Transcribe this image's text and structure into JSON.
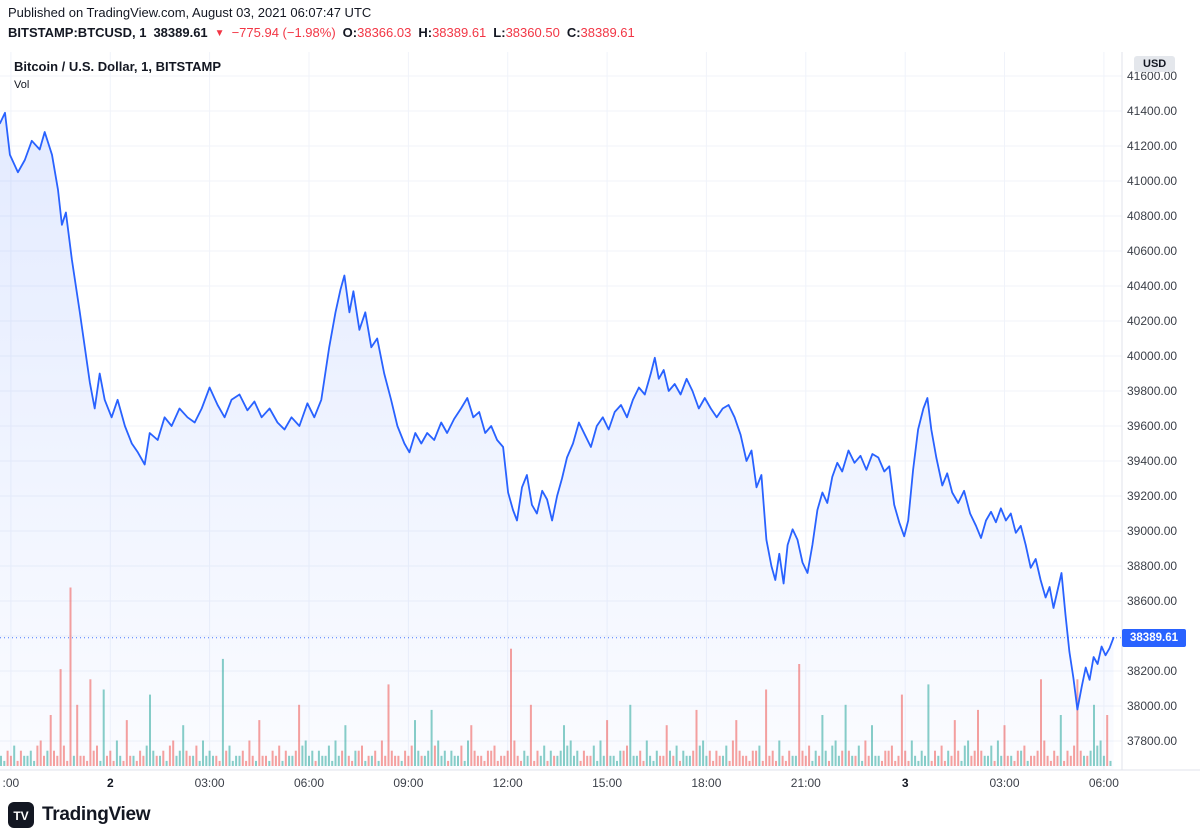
{
  "meta": {
    "published_line": "Published on TradingView.com, August 03, 2021 06:07:47 UTC"
  },
  "quote_bar": {
    "symbol": "BITSTAMP:BTCUSD, 1",
    "last": "38389.61",
    "direction_glyph": "▼",
    "change": "−775.94 (−1.98%)",
    "ohlc": [
      {
        "label": "O:",
        "value": "38366.03"
      },
      {
        "label": "H:",
        "value": "38389.61"
      },
      {
        "label": "L:",
        "value": "38360.50"
      },
      {
        "label": "C:",
        "value": "38389.61"
      }
    ]
  },
  "chart": {
    "title": "Bitcoin / U.S. Dollar, 1, BITSTAMP",
    "indicator_label": "Vol",
    "currency_badge": "USD",
    "price_badge": "38389.61",
    "colors": {
      "line": "#2962ff",
      "area_top": "rgba(41,98,255,0.13)",
      "area_bottom": "rgba(41,98,255,0.02)",
      "grid": "#f0f3fa",
      "axis_text": "#3c4049",
      "axis_text_major": "#131722",
      "negative": "#f23645",
      "volume_up": "rgba(38,166,154,0.55)",
      "volume_down": "rgba(239,83,80,0.55)",
      "badge_bg": "#2962ff",
      "separator": "#e0e3eb"
    }
  },
  "footer": {
    "brand": "TradingView"
  },
  "chart_data": {
    "type": "area",
    "title": "Bitcoin / U.S. Dollar, 1, BITSTAMP",
    "x_unit": "hours since 2021-08-01 21:00 UTC",
    "x_range": [
      -0.33,
      33.55
    ],
    "current_price": 38389.61,
    "y_axis": {
      "min": 37800,
      "max": 41600,
      "step": 200,
      "ticks": [
        41600,
        41400,
        41200,
        41000,
        40800,
        40600,
        40400,
        40200,
        40000,
        39800,
        39600,
        39400,
        39200,
        39000,
        38800,
        38600,
        38400,
        38200,
        38000,
        37800
      ]
    },
    "x_ticks": [
      {
        "t": 0,
        "label": ":00",
        "major": false
      },
      {
        "t": 3,
        "label": "2",
        "major": true
      },
      {
        "t": 6,
        "label": "03:00",
        "major": false
      },
      {
        "t": 9,
        "label": "06:00",
        "major": false
      },
      {
        "t": 12,
        "label": "09:00",
        "major": false
      },
      {
        "t": 15,
        "label": "12:00",
        "major": false
      },
      {
        "t": 18,
        "label": "15:00",
        "major": false
      },
      {
        "t": 21,
        "label": "18:00",
        "major": false
      },
      {
        "t": 24,
        "label": "21:00",
        "major": false
      },
      {
        "t": 27,
        "label": "3",
        "major": true
      },
      {
        "t": 30,
        "label": "03:00",
        "major": false
      },
      {
        "t": 33,
        "label": "06:00",
        "major": false
      }
    ],
    "price_points": [
      [
        -0.33,
        41330
      ],
      [
        -0.18,
        41390
      ],
      [
        -0.03,
        41150
      ],
      [
        0.21,
        41050
      ],
      [
        0.42,
        41120
      ],
      [
        0.63,
        41230
      ],
      [
        0.87,
        41180
      ],
      [
        1.02,
        41280
      ],
      [
        1.24,
        41150
      ],
      [
        1.42,
        40950
      ],
      [
        1.54,
        40750
      ],
      [
        1.66,
        40820
      ],
      [
        1.84,
        40550
      ],
      [
        2.08,
        40250
      ],
      [
        2.23,
        40050
      ],
      [
        2.38,
        39850
      ],
      [
        2.53,
        39700
      ],
      [
        2.68,
        39900
      ],
      [
        2.83,
        39750
      ],
      [
        3.04,
        39650
      ],
      [
        3.22,
        39750
      ],
      [
        3.44,
        39600
      ],
      [
        3.65,
        39500
      ],
      [
        3.83,
        39450
      ],
      [
        4.04,
        39380
      ],
      [
        4.19,
        39560
      ],
      [
        4.43,
        39520
      ],
      [
        4.64,
        39650
      ],
      [
        4.85,
        39600
      ],
      [
        5.09,
        39700
      ],
      [
        5.33,
        39650
      ],
      [
        5.55,
        39620
      ],
      [
        5.76,
        39700
      ],
      [
        6.0,
        39820
      ],
      [
        6.24,
        39720
      ],
      [
        6.45,
        39650
      ],
      [
        6.66,
        39750
      ],
      [
        6.9,
        39780
      ],
      [
        7.14,
        39690
      ],
      [
        7.35,
        39740
      ],
      [
        7.57,
        39650
      ],
      [
        7.81,
        39700
      ],
      [
        8.05,
        39620
      ],
      [
        8.26,
        39580
      ],
      [
        8.47,
        39650
      ],
      [
        8.71,
        39600
      ],
      [
        8.95,
        39730
      ],
      [
        9.16,
        39650
      ],
      [
        9.37,
        39750
      ],
      [
        9.61,
        40050
      ],
      [
        9.8,
        40250
      ],
      [
        9.95,
        40380
      ],
      [
        10.07,
        40460
      ],
      [
        10.22,
        40250
      ],
      [
        10.34,
        40370
      ],
      [
        10.52,
        40150
      ],
      [
        10.7,
        40250
      ],
      [
        10.88,
        40050
      ],
      [
        11.06,
        40100
      ],
      [
        11.27,
        39900
      ],
      [
        11.48,
        39750
      ],
      [
        11.67,
        39600
      ],
      [
        11.88,
        39500
      ],
      [
        12.03,
        39450
      ],
      [
        12.21,
        39560
      ],
      [
        12.39,
        39500
      ],
      [
        12.57,
        39560
      ],
      [
        12.78,
        39520
      ],
      [
        12.99,
        39620
      ],
      [
        13.17,
        39560
      ],
      [
        13.38,
        39640
      ],
      [
        13.59,
        39700
      ],
      [
        13.78,
        39760
      ],
      [
        13.96,
        39650
      ],
      [
        14.14,
        39680
      ],
      [
        14.32,
        39560
      ],
      [
        14.5,
        39600
      ],
      [
        14.68,
        39520
      ],
      [
        14.86,
        39480
      ],
      [
        15.01,
        39220
      ],
      [
        15.16,
        39120
      ],
      [
        15.28,
        39060
      ],
      [
        15.43,
        39250
      ],
      [
        15.58,
        39320
      ],
      [
        15.73,
        39150
      ],
      [
        15.88,
        39100
      ],
      [
        16.04,
        39230
      ],
      [
        16.19,
        39180
      ],
      [
        16.34,
        39060
      ],
      [
        16.49,
        39200
      ],
      [
        16.64,
        39300
      ],
      [
        16.79,
        39420
      ],
      [
        16.97,
        39500
      ],
      [
        17.15,
        39620
      ],
      [
        17.33,
        39550
      ],
      [
        17.51,
        39480
      ],
      [
        17.69,
        39600
      ],
      [
        17.87,
        39650
      ],
      [
        18.05,
        39580
      ],
      [
        18.23,
        39680
      ],
      [
        18.42,
        39720
      ],
      [
        18.6,
        39650
      ],
      [
        18.78,
        39750
      ],
      [
        18.96,
        39820
      ],
      [
        19.14,
        39780
      ],
      [
        19.32,
        39900
      ],
      [
        19.44,
        39990
      ],
      [
        19.56,
        39870
      ],
      [
        19.71,
        39920
      ],
      [
        19.86,
        39800
      ],
      [
        20.04,
        39840
      ],
      [
        20.22,
        39780
      ],
      [
        20.4,
        39870
      ],
      [
        20.58,
        39800
      ],
      [
        20.77,
        39700
      ],
      [
        20.95,
        39760
      ],
      [
        21.13,
        39700
      ],
      [
        21.31,
        39650
      ],
      [
        21.49,
        39700
      ],
      [
        21.67,
        39720
      ],
      [
        21.85,
        39650
      ],
      [
        22.03,
        39550
      ],
      [
        22.21,
        39400
      ],
      [
        22.36,
        39460
      ],
      [
        22.51,
        39250
      ],
      [
        22.66,
        39320
      ],
      [
        22.81,
        38950
      ],
      [
        22.96,
        38800
      ],
      [
        23.08,
        38720
      ],
      [
        23.2,
        38870
      ],
      [
        23.33,
        38700
      ],
      [
        23.45,
        38920
      ],
      [
        23.6,
        39010
      ],
      [
        23.75,
        38950
      ],
      [
        23.9,
        38820
      ],
      [
        24.05,
        38760
      ],
      [
        24.2,
        38920
      ],
      [
        24.35,
        39120
      ],
      [
        24.5,
        39220
      ],
      [
        24.65,
        39160
      ],
      [
        24.8,
        39310
      ],
      [
        24.95,
        39390
      ],
      [
        25.1,
        39340
      ],
      [
        25.29,
        39460
      ],
      [
        25.47,
        39390
      ],
      [
        25.65,
        39430
      ],
      [
        25.83,
        39350
      ],
      [
        26.01,
        39440
      ],
      [
        26.19,
        39420
      ],
      [
        26.37,
        39340
      ],
      [
        26.52,
        39370
      ],
      [
        26.67,
        39150
      ],
      [
        26.82,
        39050
      ],
      [
        26.97,
        38970
      ],
      [
        27.09,
        39060
      ],
      [
        27.24,
        39350
      ],
      [
        27.39,
        39580
      ],
      [
        27.55,
        39700
      ],
      [
        27.67,
        39760
      ],
      [
        27.79,
        39580
      ],
      [
        27.94,
        39420
      ],
      [
        28.12,
        39260
      ],
      [
        28.27,
        39330
      ],
      [
        28.42,
        39220
      ],
      [
        28.6,
        39160
      ],
      [
        28.78,
        39230
      ],
      [
        28.96,
        39100
      ],
      [
        29.14,
        39030
      ],
      [
        29.29,
        38960
      ],
      [
        29.44,
        39060
      ],
      [
        29.59,
        39110
      ],
      [
        29.74,
        39050
      ],
      [
        29.89,
        39130
      ],
      [
        30.04,
        39060
      ],
      [
        30.19,
        39100
      ],
      [
        30.34,
        38990
      ],
      [
        30.49,
        39030
      ],
      [
        30.64,
        38920
      ],
      [
        30.79,
        38790
      ],
      [
        30.94,
        38840
      ],
      [
        31.09,
        38720
      ],
      [
        31.24,
        38620
      ],
      [
        31.36,
        38680
      ],
      [
        31.48,
        38560
      ],
      [
        31.6,
        38660
      ],
      [
        31.72,
        38760
      ],
      [
        31.84,
        38520
      ],
      [
        31.96,
        38310
      ],
      [
        32.08,
        38160
      ],
      [
        32.2,
        37980
      ],
      [
        32.33,
        38110
      ],
      [
        32.45,
        38220
      ],
      [
        32.57,
        38150
      ],
      [
        32.69,
        38280
      ],
      [
        32.81,
        38240
      ],
      [
        32.93,
        38340
      ],
      [
        33.05,
        38290
      ],
      [
        33.17,
        38330
      ],
      [
        33.29,
        38389.61
      ]
    ],
    "volume": {
      "t_start": -0.3,
      "t_step": 0.1,
      "count": 336,
      "base_pattern": "2132413223145231322415232213341223152132",
      "spikes": {
        "15": 10,
        "18": 19,
        "21": 35,
        "23": 12,
        "27": 17,
        "31": 15,
        "38": 9,
        "45": 14,
        "55": 8,
        "67": 21,
        "78": 9,
        "90": 12,
        "104": 8,
        "117": 16,
        "125": 9,
        "130": 11,
        "142": 8,
        "154": 23,
        "160": 12,
        "170": 8,
        "183": 9,
        "190": 12,
        "201": 8,
        "210": 11,
        "222": 9,
        "231": 15,
        "241": 20,
        "248": 10,
        "255": 12,
        "263": 8,
        "272": 14,
        "280": 16,
        "288": 9,
        "295": 11,
        "303": 8,
        "314": 17,
        "320": 10,
        "325": 17,
        "330": 12,
        "334": 10
      }
    }
  }
}
